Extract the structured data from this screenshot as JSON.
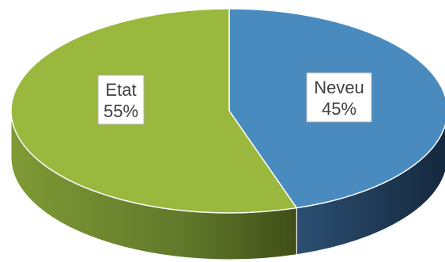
{
  "chart_data": {
    "type": "pie",
    "style": "3d",
    "categories": [
      "Neveu",
      "Etat"
    ],
    "values": [
      45,
      55
    ],
    "labels": [
      "45%",
      "55%"
    ],
    "colors": [
      "#4a8bbf",
      "#9bb83e"
    ],
    "side_colors": [
      "#1f3a55",
      "#5e7a22"
    ],
    "title": "",
    "legend": "none"
  }
}
